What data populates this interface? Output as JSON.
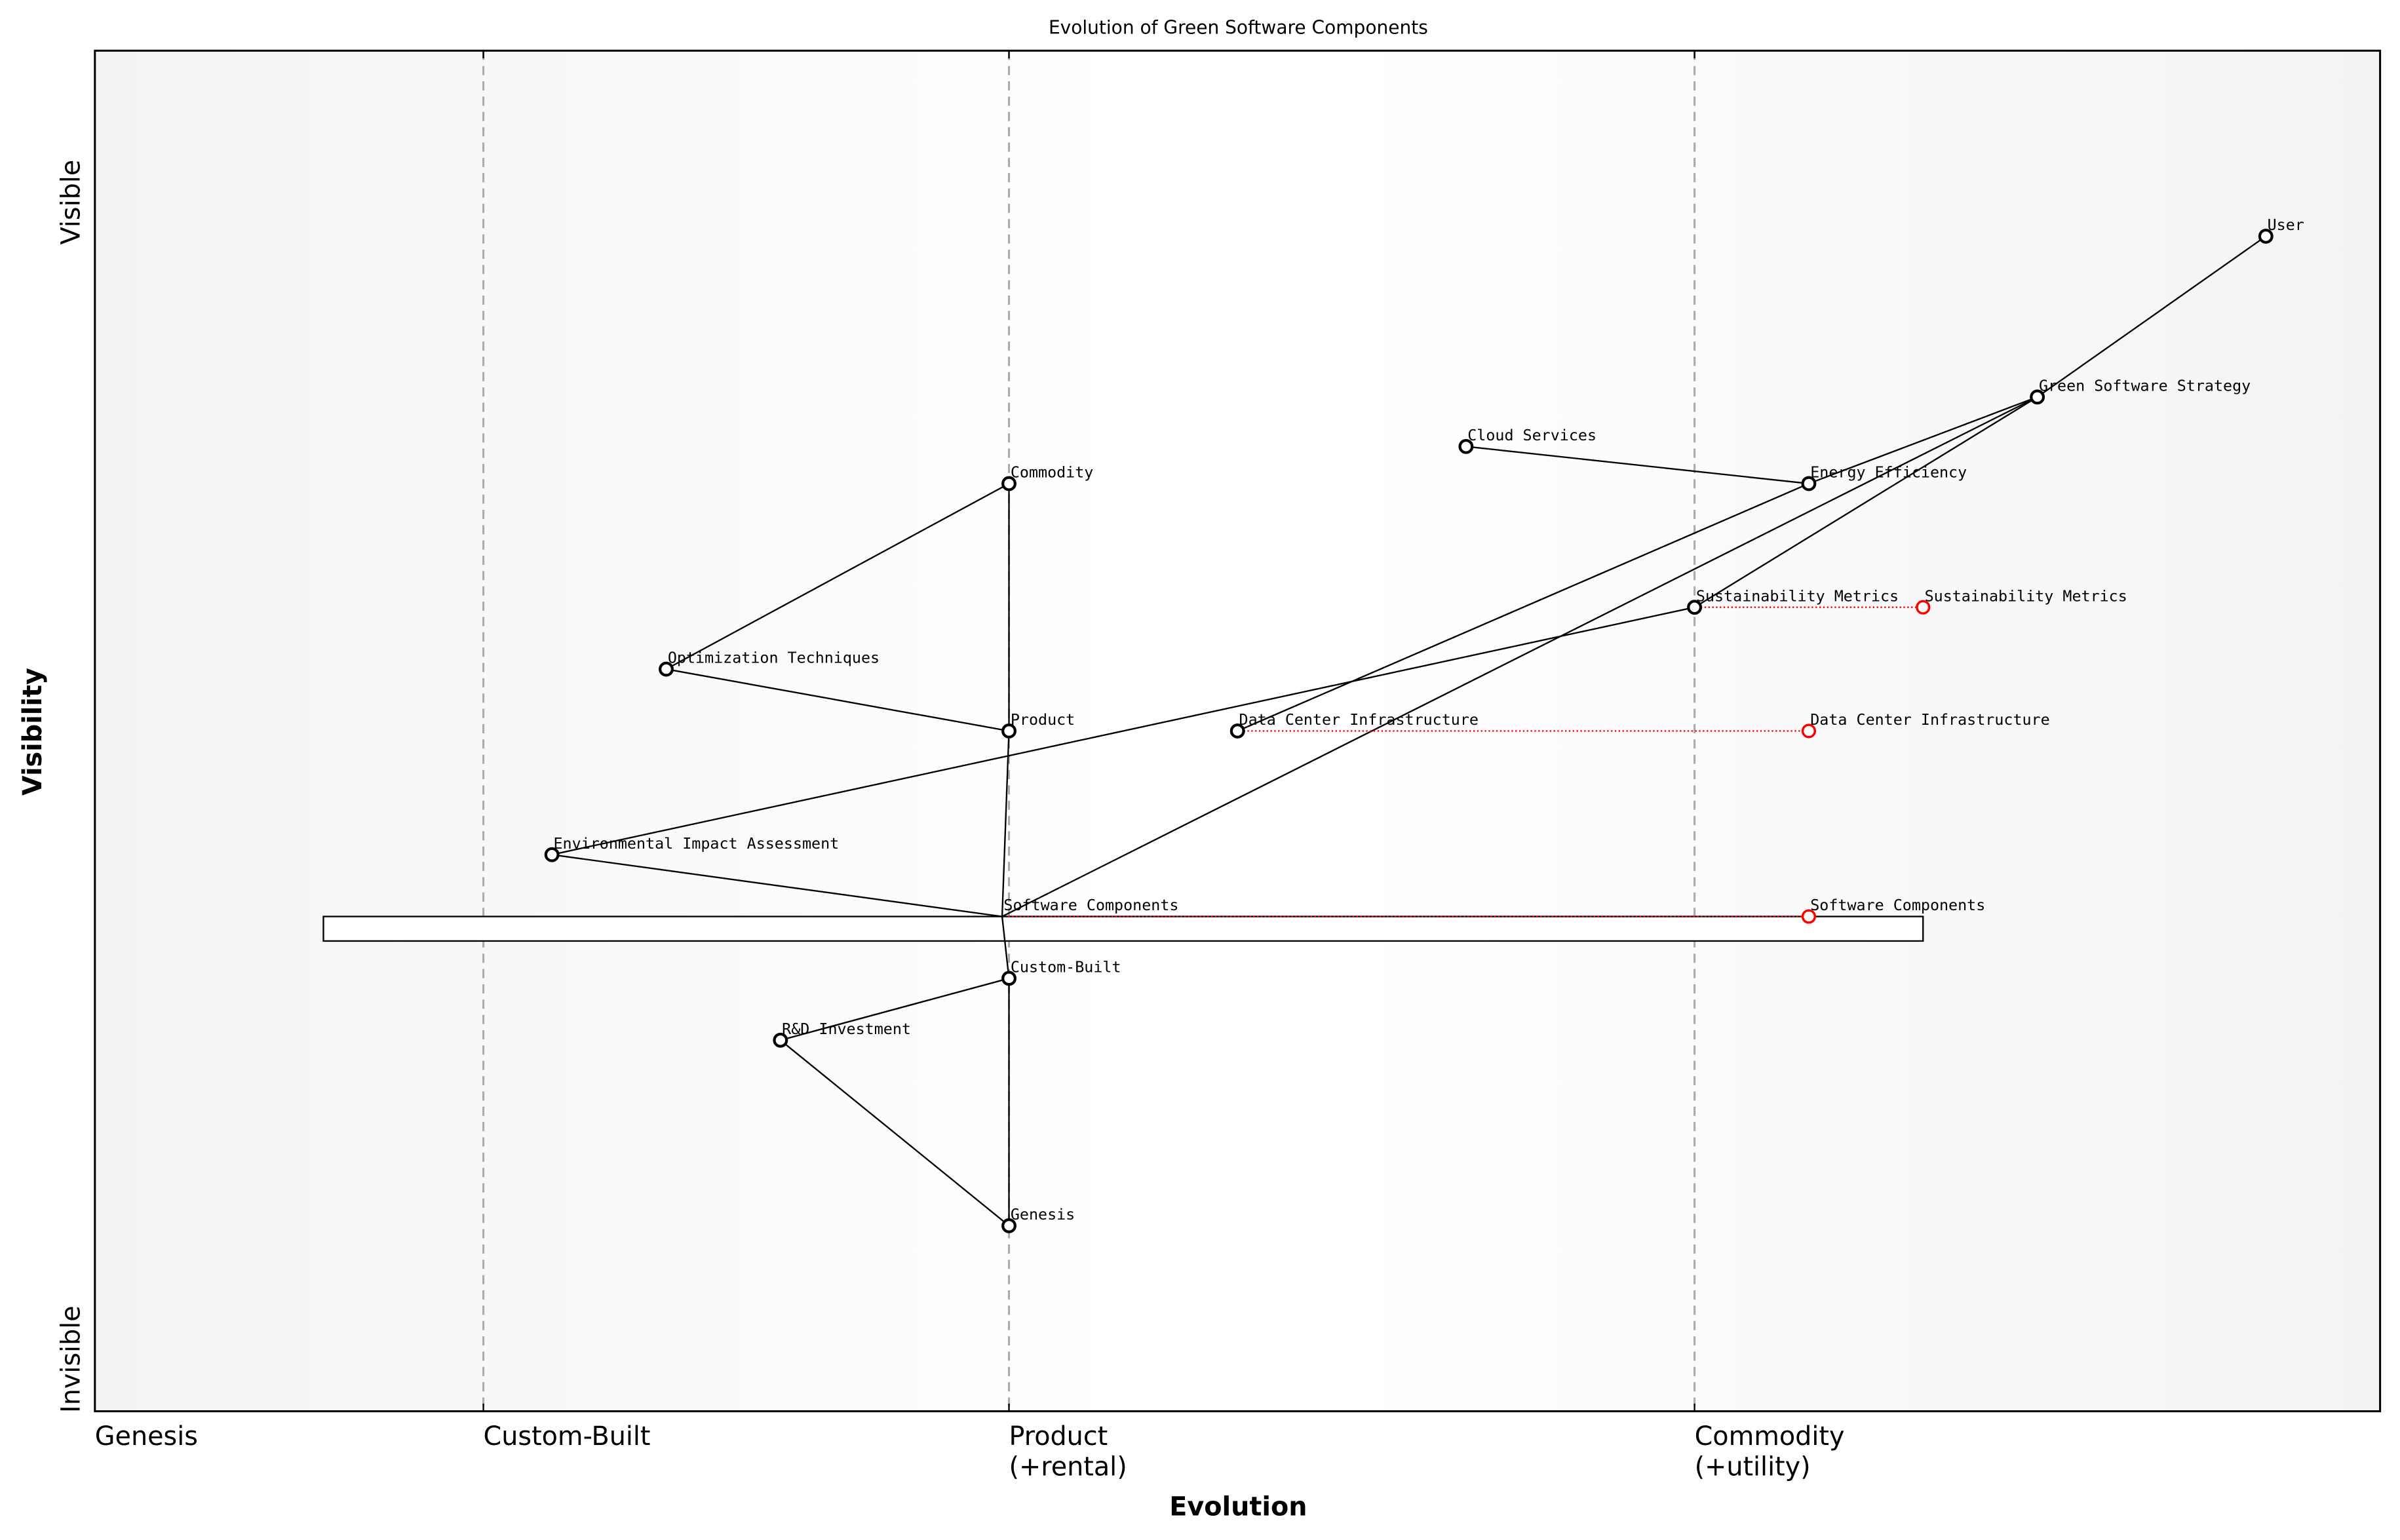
{
  "title": "Evolution of Green Software Components",
  "axes": {
    "x_label": "Evolution",
    "y_label": "Visibility",
    "y_top": "Visible",
    "y_bottom": "Invisible",
    "x_range": [
      0,
      1
    ],
    "y_range": [
      -0.05,
      1.05
    ],
    "stages": [
      {
        "label": "Genesis",
        "sub": "",
        "evolution": 0.0
      },
      {
        "label": "Custom-Built",
        "sub": "",
        "evolution": 0.17
      },
      {
        "label": "Product",
        "sub": "(+rental)",
        "evolution": 0.4
      },
      {
        "label": "Commodity",
        "sub": "(+utility)",
        "evolution": 0.7
      }
    ]
  },
  "colors": {
    "node": "#000000",
    "evolved": "#ff0000",
    "divider": "#aaaaaa",
    "background_edge": "#f4f4f4"
  },
  "components": [
    {
      "name": "User",
      "evolution": 0.95,
      "visibility": 0.9
    },
    {
      "name": "Green Software Strategy",
      "evolution": 0.85,
      "visibility": 0.77
    },
    {
      "name": "Cloud Services",
      "evolution": 0.6,
      "visibility": 0.73
    },
    {
      "name": "Energy Efficiency",
      "evolution": 0.75,
      "visibility": 0.7
    },
    {
      "name": "Commodity",
      "evolution": 0.4,
      "visibility": 0.7
    },
    {
      "name": "Sustainability Metrics",
      "evolution": 0.7,
      "visibility": 0.6
    },
    {
      "name": "Optimization Techniques",
      "evolution": 0.25,
      "visibility": 0.55
    },
    {
      "name": "Product",
      "evolution": 0.4,
      "visibility": 0.5
    },
    {
      "name": "Data Center Infrastructure",
      "evolution": 0.5,
      "visibility": 0.5
    },
    {
      "name": "Environmental Impact Assessment",
      "evolution": 0.2,
      "visibility": 0.4
    },
    {
      "name": "Software Components",
      "evolution": 0.397,
      "visibility": 0.35,
      "hidden_marker": true
    },
    {
      "name": "Custom-Built",
      "evolution": 0.4,
      "visibility": 0.3
    },
    {
      "name": "R&D Investment",
      "evolution": 0.3,
      "visibility": 0.25
    },
    {
      "name": "Genesis",
      "evolution": 0.4,
      "visibility": 0.1
    }
  ],
  "links": [
    [
      "User",
      "Green Software Strategy"
    ],
    [
      "Green Software Strategy",
      "Energy Efficiency"
    ],
    [
      "Green Software Strategy",
      "Sustainability Metrics"
    ],
    [
      "Green Software Strategy",
      "Software Components"
    ],
    [
      "Cloud Services",
      "Energy Efficiency"
    ],
    [
      "Energy Efficiency",
      "Data Center Infrastructure"
    ],
    [
      "Sustainability Metrics",
      "Environmental Impact Assessment"
    ],
    [
      "Environmental Impact Assessment",
      "Software Components"
    ],
    [
      "Commodity",
      "Optimization Techniques"
    ],
    [
      "Optimization Techniques",
      "Product"
    ],
    [
      "Commodity",
      "Product"
    ],
    [
      "Product",
      "Software Components"
    ],
    [
      "Software Components",
      "Custom-Built"
    ],
    [
      "Custom-Built",
      "Genesis"
    ],
    [
      "R&D Investment",
      "Custom-Built"
    ],
    [
      "R&D Investment",
      "Genesis"
    ]
  ],
  "evolutions": [
    {
      "name": "Sustainability Metrics",
      "to_evolution": 0.8
    },
    {
      "name": "Data Center Infrastructure",
      "to_evolution": 0.75
    },
    {
      "name": "Software Components",
      "to_evolution": 0.75
    }
  ],
  "pipelines": [
    {
      "name": "Software Components",
      "start": 0.1,
      "end": 0.8
    }
  ]
}
